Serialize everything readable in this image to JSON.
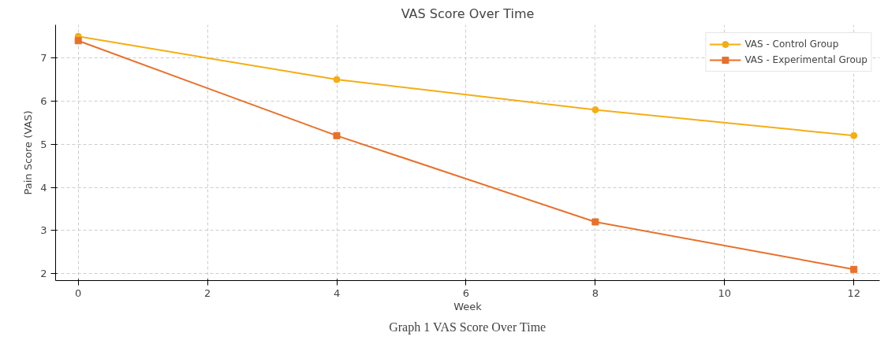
{
  "chart_data": {
    "type": "line",
    "title": "VAS Score Over Time",
    "xlabel": "Week",
    "ylabel": "Pain Score (VAS)",
    "x": [
      0,
      4,
      8,
      12
    ],
    "series": [
      {
        "name": "VAS - Control Group",
        "color": "#f5ad14",
        "values": [
          7.5,
          6.5,
          5.8,
          5.2
        ],
        "marker": "circle"
      },
      {
        "name": "VAS - Experimental Group",
        "color": "#e8702a",
        "values": [
          7.4,
          5.2,
          3.2,
          2.1
        ],
        "marker": "square"
      }
    ],
    "xlim": [
      -0.35,
      12.4
    ],
    "ylim": [
      1.84,
      7.77
    ],
    "xticks": [
      0,
      2,
      4,
      6,
      8,
      10,
      12
    ],
    "yticks": [
      2,
      3,
      4,
      5,
      6,
      7
    ],
    "grid": true,
    "legend": "top right",
    "line_style": "solid",
    "annotations": [
      "Graph 1 VAS Score Over Time"
    ]
  }
}
